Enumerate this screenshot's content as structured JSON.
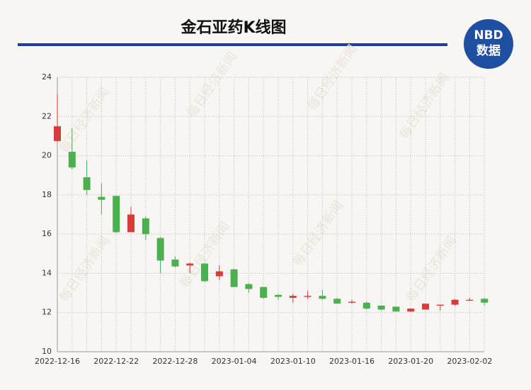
{
  "chart_data": {
    "type": "candlestick",
    "title": "金石亚药K线图",
    "logo": {
      "line1": "NBD",
      "line2": "数据"
    },
    "watermark": "每日经济新闻",
    "categories": [
      "2022-12-16",
      null,
      null,
      null,
      "2022-12-22",
      null,
      null,
      null,
      "2022-12-28",
      null,
      null,
      null,
      "2023-01-04",
      null,
      null,
      null,
      "2023-01-10",
      null,
      null,
      null,
      "2023-01-16",
      null,
      null,
      null,
      "2023-01-20",
      null,
      null,
      null,
      "2023-02-02",
      null
    ],
    "open": [
      20.75,
      20.2,
      18.9,
      17.9,
      17.95,
      16.1,
      16.8,
      15.8,
      14.7,
      14.4,
      14.5,
      13.85,
      14.2,
      13.45,
      13.3,
      12.9,
      12.75,
      12.8,
      12.85,
      12.7,
      12.5,
      12.5,
      12.35,
      12.3,
      12.05,
      12.15,
      12.35,
      12.4,
      12.6,
      12.7
    ],
    "high": [
      23.15,
      21.4,
      19.75,
      18.6,
      17.95,
      17.4,
      16.9,
      15.85,
      14.85,
      14.55,
      14.5,
      14.4,
      14.25,
      13.5,
      13.3,
      12.95,
      12.95,
      13.1,
      13.15,
      12.75,
      12.65,
      12.55,
      12.35,
      12.3,
      12.2,
      12.45,
      12.4,
      12.7,
      12.75,
      12.75
    ],
    "low": [
      20.7,
      19.3,
      18.0,
      17.0,
      16.05,
      16.1,
      15.7,
      14.0,
      14.3,
      14.0,
      13.55,
      13.65,
      13.3,
      13.0,
      12.7,
      12.65,
      12.5,
      12.7,
      12.65,
      12.45,
      12.45,
      12.15,
      12.1,
      12.05,
      12.05,
      12.15,
      12.1,
      12.35,
      12.6,
      12.35
    ],
    "close": [
      21.5,
      19.4,
      18.25,
      17.75,
      16.1,
      17.0,
      16.0,
      14.65,
      14.35,
      14.5,
      13.6,
      14.1,
      13.3,
      13.2,
      12.75,
      12.8,
      12.85,
      12.85,
      12.7,
      12.45,
      12.55,
      12.2,
      12.15,
      12.05,
      12.2,
      12.45,
      12.4,
      12.65,
      12.65,
      12.5
    ],
    "up_color": "#d93a3a",
    "down_color": "#4caf50",
    "ylim": [
      10,
      24
    ],
    "yticks": [
      10,
      12,
      14,
      16,
      18,
      20,
      22,
      24
    ],
    "grid": true
  }
}
